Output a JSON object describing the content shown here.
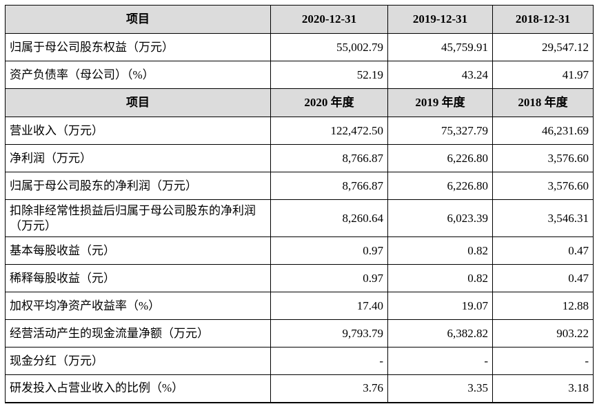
{
  "table": {
    "header1": [
      "项目",
      "2020-12-31",
      "2019-12-31",
      "2018-12-31"
    ],
    "rows1": [
      {
        "label": "归属于母公司股东权益（万元）",
        "values": [
          "55,002.79",
          "45,759.91",
          "29,547.12"
        ]
      },
      {
        "label": "资产负债率（母公司）（%）",
        "values": [
          "52.19",
          "43.24",
          "41.97"
        ]
      }
    ],
    "header2": [
      "项目",
      "2020 年度",
      "2019 年度",
      "2018 年度"
    ],
    "rows2": [
      {
        "label": "营业收入（万元）",
        "values": [
          "122,472.50",
          "75,327.79",
          "46,231.69"
        ]
      },
      {
        "label": "净利润（万元）",
        "values": [
          "8,766.87",
          "6,226.80",
          "3,576.60"
        ]
      },
      {
        "label": "归属于母公司股东的净利润（万元）",
        "values": [
          "8,766.87",
          "6,226.80",
          "3,576.60"
        ]
      },
      {
        "label": "扣除非经常性损益后归属于母公司股东的净利润（万元）",
        "values": [
          "8,260.64",
          "6,023.39",
          "3,546.31"
        ]
      },
      {
        "label": "基本每股收益（元）",
        "values": [
          "0.97",
          "0.82",
          "0.47"
        ]
      },
      {
        "label": "稀释每股收益（元）",
        "values": [
          "0.97",
          "0.82",
          "0.47"
        ]
      },
      {
        "label": "加权平均净资产收益率（%）",
        "values": [
          "17.40",
          "19.07",
          "12.88"
        ]
      },
      {
        "label": "经营活动产生的现金流量净额（万元）",
        "values": [
          "9,793.79",
          "6,382.82",
          "903.22"
        ]
      },
      {
        "label": "现金分红（万元）",
        "values": [
          "-",
          "-",
          "-"
        ]
      },
      {
        "label": "研发投入占营业收入的比例（%）",
        "values": [
          "3.76",
          "3.35",
          "3.18"
        ]
      }
    ]
  }
}
